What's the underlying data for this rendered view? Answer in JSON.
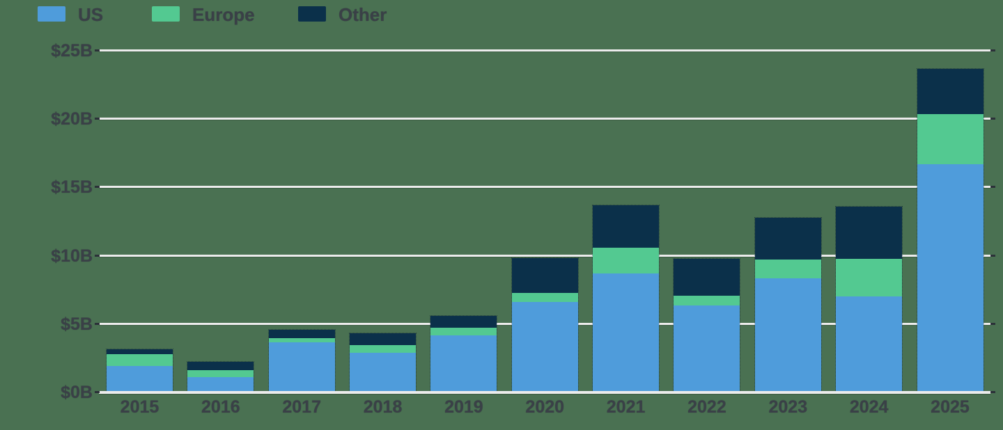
{
  "legend": {
    "items": [
      {
        "label": "US",
        "color": "#4F9CDB"
      },
      {
        "label": "Europe",
        "color": "#53C991"
      },
      {
        "label": "Other",
        "color": "#0B304A"
      }
    ]
  },
  "chart_data": {
    "type": "bar",
    "stacked": true,
    "title": "",
    "xlabel": "",
    "ylabel": "",
    "categories": [
      "2015",
      "2016",
      "2017",
      "2018",
      "2019",
      "2020",
      "2021",
      "2022",
      "2023",
      "2024",
      "2025"
    ],
    "series": [
      {
        "name": "US",
        "color": "#4F9CDB",
        "values": [
          1.9,
          1.05,
          3.6,
          2.85,
          4.1,
          6.55,
          8.65,
          6.3,
          8.3,
          7.0,
          16.65
        ]
      },
      {
        "name": "Europe",
        "color": "#53C991",
        "values": [
          0.85,
          0.55,
          0.3,
          0.55,
          0.6,
          0.7,
          1.9,
          0.75,
          1.35,
          2.75,
          3.65
        ]
      },
      {
        "name": "Other",
        "color": "#0B304A",
        "values": [
          0.35,
          0.6,
          0.65,
          0.9,
          0.85,
          2.55,
          3.1,
          2.65,
          3.1,
          3.8,
          3.3
        ]
      }
    ],
    "totals": [
      3.1,
      2.2,
      4.55,
      4.3,
      5.55,
      9.8,
      13.65,
      9.7,
      12.75,
      13.55,
      23.6
    ],
    "y_axis": {
      "ticks": [
        "$0B",
        "$5B",
        "$10B",
        "$15B",
        "$20B",
        "$25B"
      ],
      "tick_values": [
        0,
        5,
        10,
        15,
        20,
        25
      ]
    },
    "ylim": [
      0,
      25
    ],
    "grid": "horizontal",
    "legend_position": "top-left"
  },
  "colors": {
    "background": "#4A7152",
    "gridline": "#ECECEC",
    "tick_cap": "#2B3138",
    "text": "#3A4047"
  }
}
